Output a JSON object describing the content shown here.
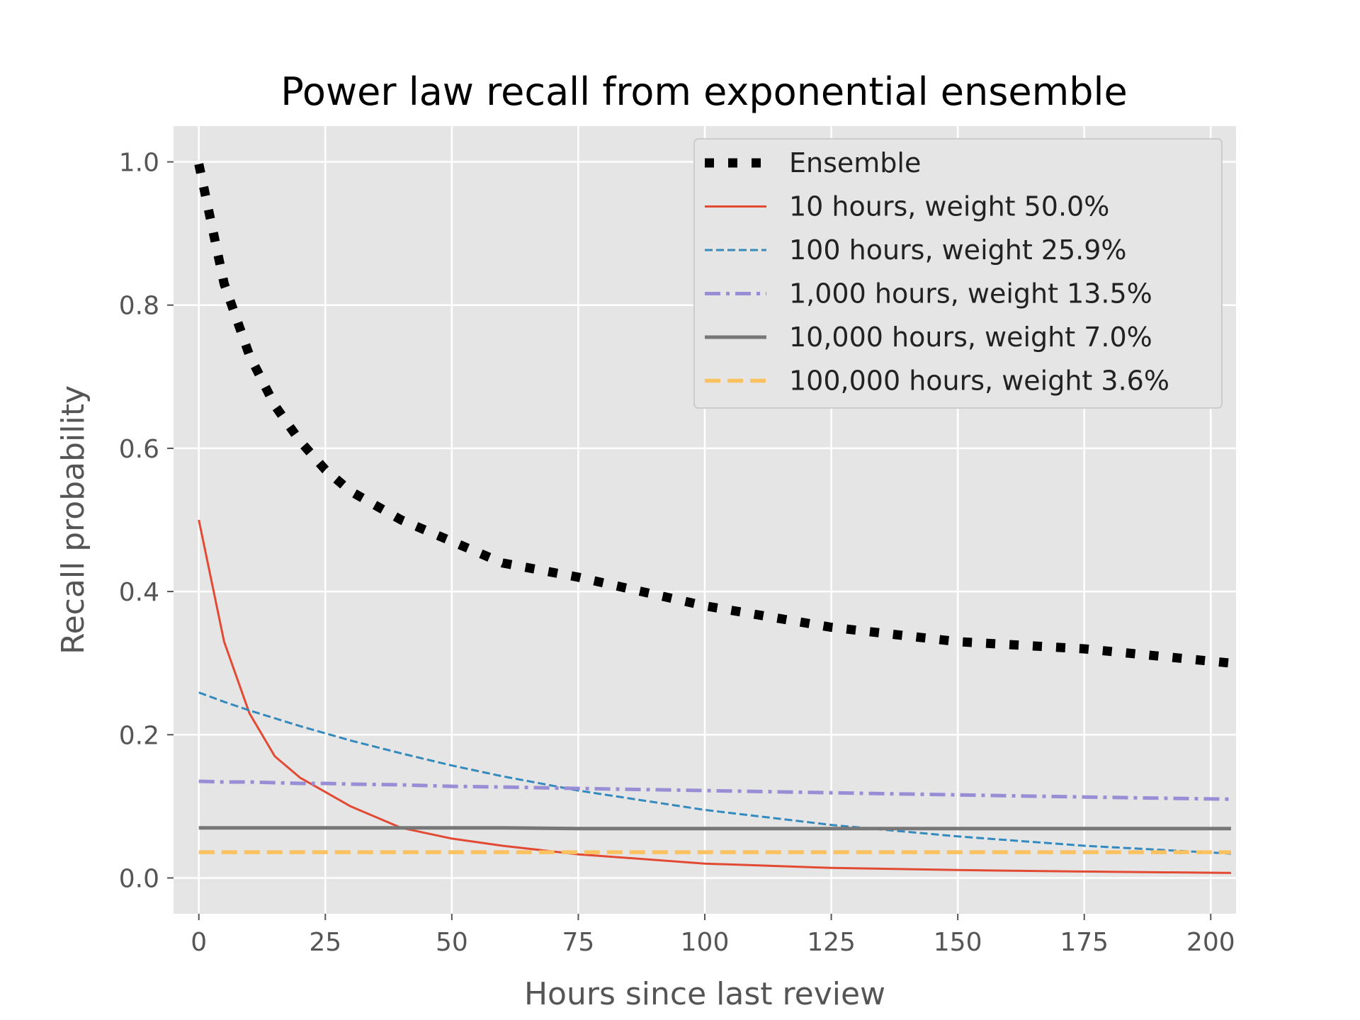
{
  "chart_data": {
    "type": "line",
    "title": "Power law recall from exponential ensemble",
    "xlabel": "Hours since last review",
    "ylabel": "Recall probability",
    "xlim": [
      -5,
      205
    ],
    "ylim": [
      -0.05,
      1.05
    ],
    "x_ticks": [
      0,
      25,
      50,
      75,
      100,
      125,
      150,
      175,
      200
    ],
    "y_ticks": [
      0.0,
      0.2,
      0.4,
      0.6,
      0.8,
      1.0
    ],
    "x_tick_labels": [
      "0",
      "25",
      "50",
      "75",
      "100",
      "125",
      "150",
      "175",
      "200"
    ],
    "y_tick_labels": [
      "0.0",
      "0.2",
      "0.4",
      "0.6",
      "0.8",
      "1.0"
    ],
    "grid": true,
    "legend_position": "top-right",
    "x": [
      0,
      5,
      10,
      15,
      20,
      25,
      30,
      40,
      50,
      60,
      75,
      100,
      125,
      150,
      175,
      204
    ],
    "series": [
      {
        "name": "Ensemble",
        "color": "#000000",
        "style": "dotted",
        "values": [
          0.997,
          0.83,
          0.73,
          0.66,
          0.61,
          0.57,
          0.54,
          0.5,
          0.47,
          0.44,
          0.42,
          0.38,
          0.35,
          0.33,
          0.32,
          0.3
        ]
      },
      {
        "name": "10 hours, weight 50.0%",
        "color": "#E24A33",
        "style": "solid",
        "values": [
          0.5,
          0.33,
          0.23,
          0.17,
          0.14,
          0.12,
          0.1,
          0.07,
          0.055,
          0.045,
          0.033,
          0.02,
          0.014,
          0.011,
          0.009,
          0.007
        ]
      },
      {
        "name": "100 hours, weight 25.9%",
        "color": "#348ABD",
        "style": "dashed",
        "values": [
          0.259,
          0.246,
          0.234,
          0.223,
          0.212,
          0.202,
          0.192,
          0.174,
          0.157,
          0.142,
          0.122,
          0.095,
          0.074,
          0.058,
          0.045,
          0.034
        ]
      },
      {
        "name": "1,000 hours, weight 13.5%",
        "color": "#988ED5",
        "style": "dashdot",
        "values": [
          0.135,
          0.134,
          0.134,
          0.133,
          0.132,
          0.132,
          0.131,
          0.13,
          0.128,
          0.127,
          0.125,
          0.122,
          0.119,
          0.116,
          0.113,
          0.11
        ]
      },
      {
        "name": "10,000 hours, weight 7.0%",
        "color": "#777777",
        "style": "solid",
        "values": [
          0.07,
          0.07,
          0.07,
          0.07,
          0.07,
          0.07,
          0.07,
          0.07,
          0.07,
          0.07,
          0.069,
          0.069,
          0.069,
          0.069,
          0.069,
          0.069
        ]
      },
      {
        "name": "100,000 hours, weight 3.6%",
        "color": "#FBC15E",
        "style": "dashed-thick",
        "values": [
          0.036,
          0.036,
          0.036,
          0.036,
          0.036,
          0.036,
          0.036,
          0.036,
          0.036,
          0.036,
          0.036,
          0.036,
          0.036,
          0.036,
          0.036,
          0.036
        ]
      }
    ]
  }
}
